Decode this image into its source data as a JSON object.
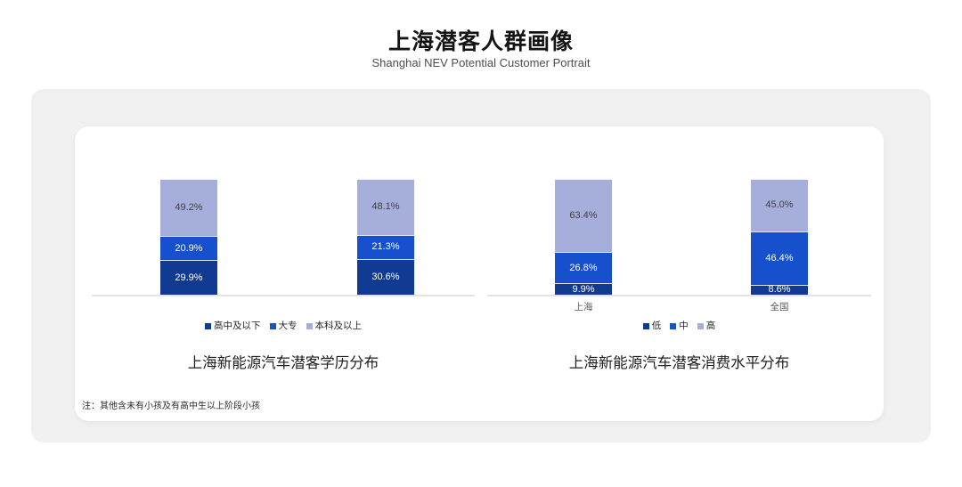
{
  "page": {
    "title": "上海潜客人群画像",
    "subtitle": "Shanghai NEV Potential Customer Portrait",
    "footnote": "注：其他含未有小孩及有高中生以上阶段小孩"
  },
  "colors": {
    "axis": "#e4e4e4",
    "panel_bg": "#f0f0f1",
    "card_bg": "#ffffff",
    "series_dark_blue": "#113b92",
    "series_blue": "#1650cc",
    "series_periwinkle": "#a6aedc"
  },
  "chart_data": [
    {
      "type": "bar",
      "stacked": true,
      "title": "上海新能源汽车潜客学历分布",
      "categories": [
        "",
        ""
      ],
      "show_category_labels": false,
      "value_suffix": "%",
      "ylim": [
        0,
        100
      ],
      "grid": false,
      "legend_position": "bottom",
      "series": [
        {
          "name": "高中及以下",
          "color": "#113b92",
          "label_color": "#ffffff",
          "values": [
            29.9,
            30.6
          ]
        },
        {
          "name": "大专",
          "color": "#1650cc",
          "label_color": "#ffffff",
          "values": [
            20.9,
            21.3
          ]
        },
        {
          "name": "本科及以上",
          "color": "#a6aedc",
          "label_color": "#3f3f3f",
          "values": [
            49.2,
            48.1
          ]
        }
      ]
    },
    {
      "type": "bar",
      "stacked": true,
      "title": "上海新能源汽车潜客消费水平分布",
      "categories": [
        "上海",
        "全国"
      ],
      "show_category_labels": true,
      "value_suffix": "%",
      "ylim": [
        0,
        100
      ],
      "grid": false,
      "legend_position": "bottom",
      "series": [
        {
          "name": "低",
          "color": "#113b92",
          "label_color": "#ffffff",
          "values": [
            9.9,
            8.6
          ]
        },
        {
          "name": "中",
          "color": "#1650cc",
          "label_color": "#ffffff",
          "values": [
            26.8,
            46.4
          ]
        },
        {
          "name": "高",
          "color": "#a6aedc",
          "label_color": "#3f3f3f",
          "values": [
            63.4,
            45.0
          ]
        }
      ]
    }
  ]
}
